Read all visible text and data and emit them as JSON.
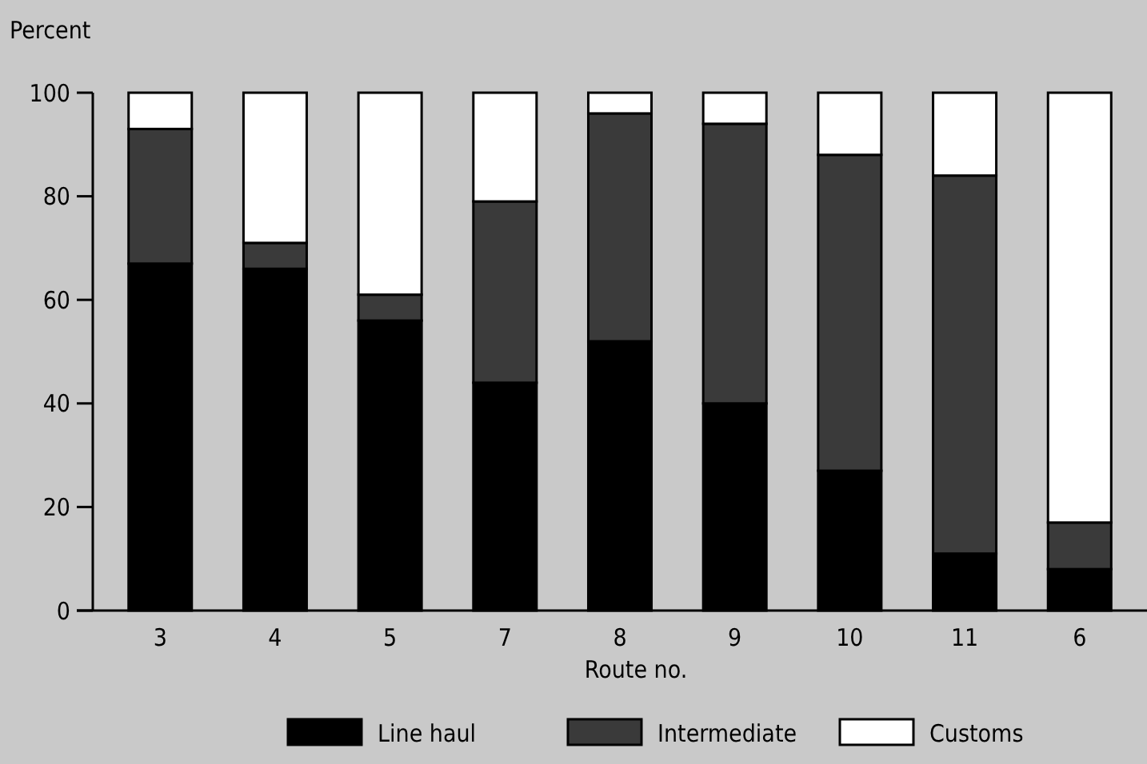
{
  "chart_data": {
    "type": "bar",
    "stacked": true,
    "ylabel": "Percent",
    "xlabel": "Route no.",
    "categories": [
      "3",
      "4",
      "5",
      "7",
      "8",
      "9",
      "10",
      "11",
      "6"
    ],
    "series": [
      {
        "name": "Line haul",
        "color": "#000000",
        "values": [
          67,
          66,
          56,
          44,
          52,
          40,
          27,
          11,
          8
        ]
      },
      {
        "name": "Intermediate",
        "color": "#3a3a3a",
        "values": [
          26,
          5,
          5,
          35,
          44,
          54,
          61,
          73,
          9
        ]
      },
      {
        "name": "Customs",
        "color": "#ffffff",
        "values": [
          7,
          29,
          39,
          21,
          4,
          6,
          12,
          16,
          83
        ]
      }
    ],
    "ylim": [
      0,
      100
    ],
    "yticks": [
      0,
      20,
      40,
      60,
      80,
      100
    ],
    "legend": "bottom"
  }
}
